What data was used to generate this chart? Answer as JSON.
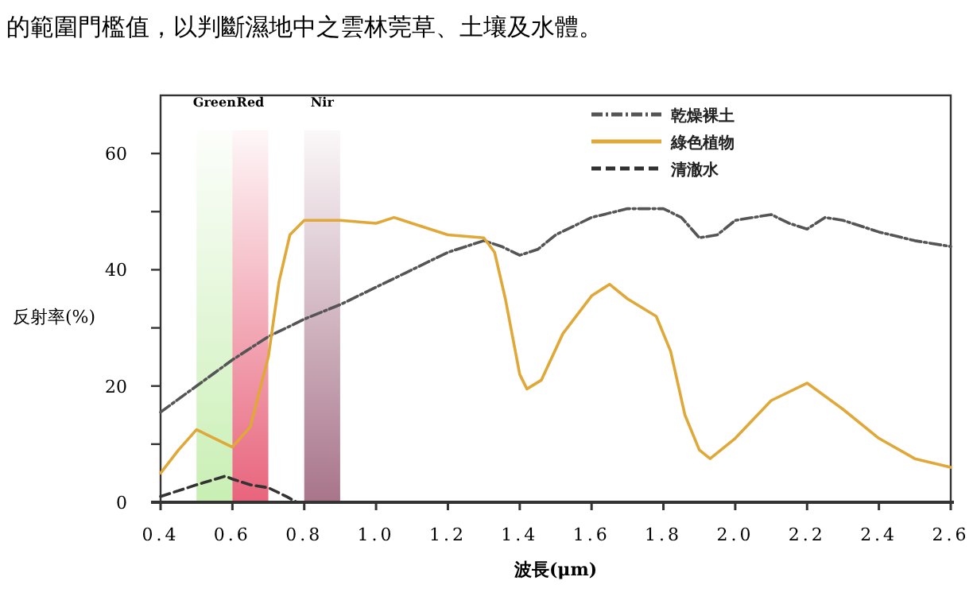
{
  "chart_data": {
    "type": "line",
    "annotations": [
      "的範圍門檻值，以判斷濕地中之雲林莞草、土壤及水體。"
    ],
    "xlabel": "波長(μm)",
    "ylabel": "反射率(%)",
    "xlim": [
      0.4,
      2.6
    ],
    "xticks": [
      {
        "value": 0.4,
        "label": "0.4"
      },
      {
        "value": 0.6,
        "label": "0.6"
      },
      {
        "value": 0.8,
        "label": "0.8"
      },
      {
        "value": 1.0,
        "label": "1.0"
      },
      {
        "value": 1.2,
        "label": "1.2"
      },
      {
        "value": 1.4,
        "label": "1.4"
      },
      {
        "value": 1.6,
        "label": "1.6"
      },
      {
        "value": 1.8,
        "label": "1.8"
      },
      {
        "value": 2.0,
        "label": "2.0"
      },
      {
        "value": 2.2,
        "label": "2.2"
      },
      {
        "value": 2.4,
        "label": "2.4"
      },
      {
        "value": 2.6,
        "label": "2.6"
      }
    ],
    "ylim": [
      0,
      70
    ],
    "yticks": [
      0,
      {
        "value": 10,
        "label": null
      },
      20,
      {
        "value": 30,
        "label": null
      },
      40,
      {
        "value": 50,
        "label": null
      },
      60
    ],
    "grid": false,
    "legend": "top right",
    "marker": "none",
    "bands": [
      {
        "axis": "x",
        "from": 0.5,
        "to": 0.6,
        "label": "Green",
        "color": "#c9efb4"
      },
      {
        "axis": "x",
        "from": 0.6,
        "to": 0.7,
        "label": "Red",
        "color": "#e8647c"
      },
      {
        "axis": "x",
        "from": 0.8,
        "to": 0.9,
        "label": "Nir",
        "color": "#a8748a"
      }
    ],
    "series": [
      {
        "name": "乾燥裸土",
        "color": "#555555",
        "line_style": "dashdot",
        "x": [
          0.4,
          0.5,
          0.6,
          0.7,
          0.8,
          0.9,
          1.0,
          1.1,
          1.2,
          1.3,
          1.35,
          1.4,
          1.45,
          1.5,
          1.6,
          1.7,
          1.8,
          1.85,
          1.9,
          1.95,
          2.0,
          2.1,
          2.15,
          2.2,
          2.25,
          2.3,
          2.4,
          2.5,
          2.6
        ],
        "values": [
          15.5,
          20,
          24.5,
          28.5,
          31.5,
          34,
          37,
          40,
          43,
          45,
          44,
          42.5,
          43.5,
          46,
          49,
          50.5,
          50.5,
          49,
          45.5,
          46,
          48.5,
          49.5,
          48,
          47,
          49,
          48.5,
          46.5,
          45,
          44
        ]
      },
      {
        "name": "綠色植物",
        "color": "#e0a838",
        "line_style": "solid",
        "x": [
          0.4,
          0.45,
          0.5,
          0.55,
          0.6,
          0.65,
          0.7,
          0.73,
          0.76,
          0.8,
          0.9,
          1.0,
          1.05,
          1.1,
          1.2,
          1.3,
          1.33,
          1.36,
          1.4,
          1.42,
          1.46,
          1.52,
          1.6,
          1.65,
          1.7,
          1.78,
          1.82,
          1.86,
          1.9,
          1.93,
          2.0,
          2.1,
          2.2,
          2.3,
          2.4,
          2.5,
          2.6
        ],
        "values": [
          5,
          9,
          12.5,
          11,
          9.5,
          13,
          25,
          38,
          46,
          48.5,
          48.5,
          48,
          49,
          48,
          46,
          45.5,
          43,
          35,
          22,
          19.5,
          21,
          29,
          35.5,
          37.5,
          35,
          32,
          26,
          15,
          9,
          7.5,
          11,
          17.5,
          20.5,
          16,
          11,
          7.5,
          6
        ]
      },
      {
        "name": "清澈水",
        "color": "#333333",
        "line_style": "dashed",
        "x": [
          0.4,
          0.5,
          0.58,
          0.6,
          0.65,
          0.7,
          0.75,
          0.78
        ],
        "values": [
          1,
          3,
          4.5,
          4,
          3,
          2.5,
          1,
          0
        ]
      }
    ]
  }
}
